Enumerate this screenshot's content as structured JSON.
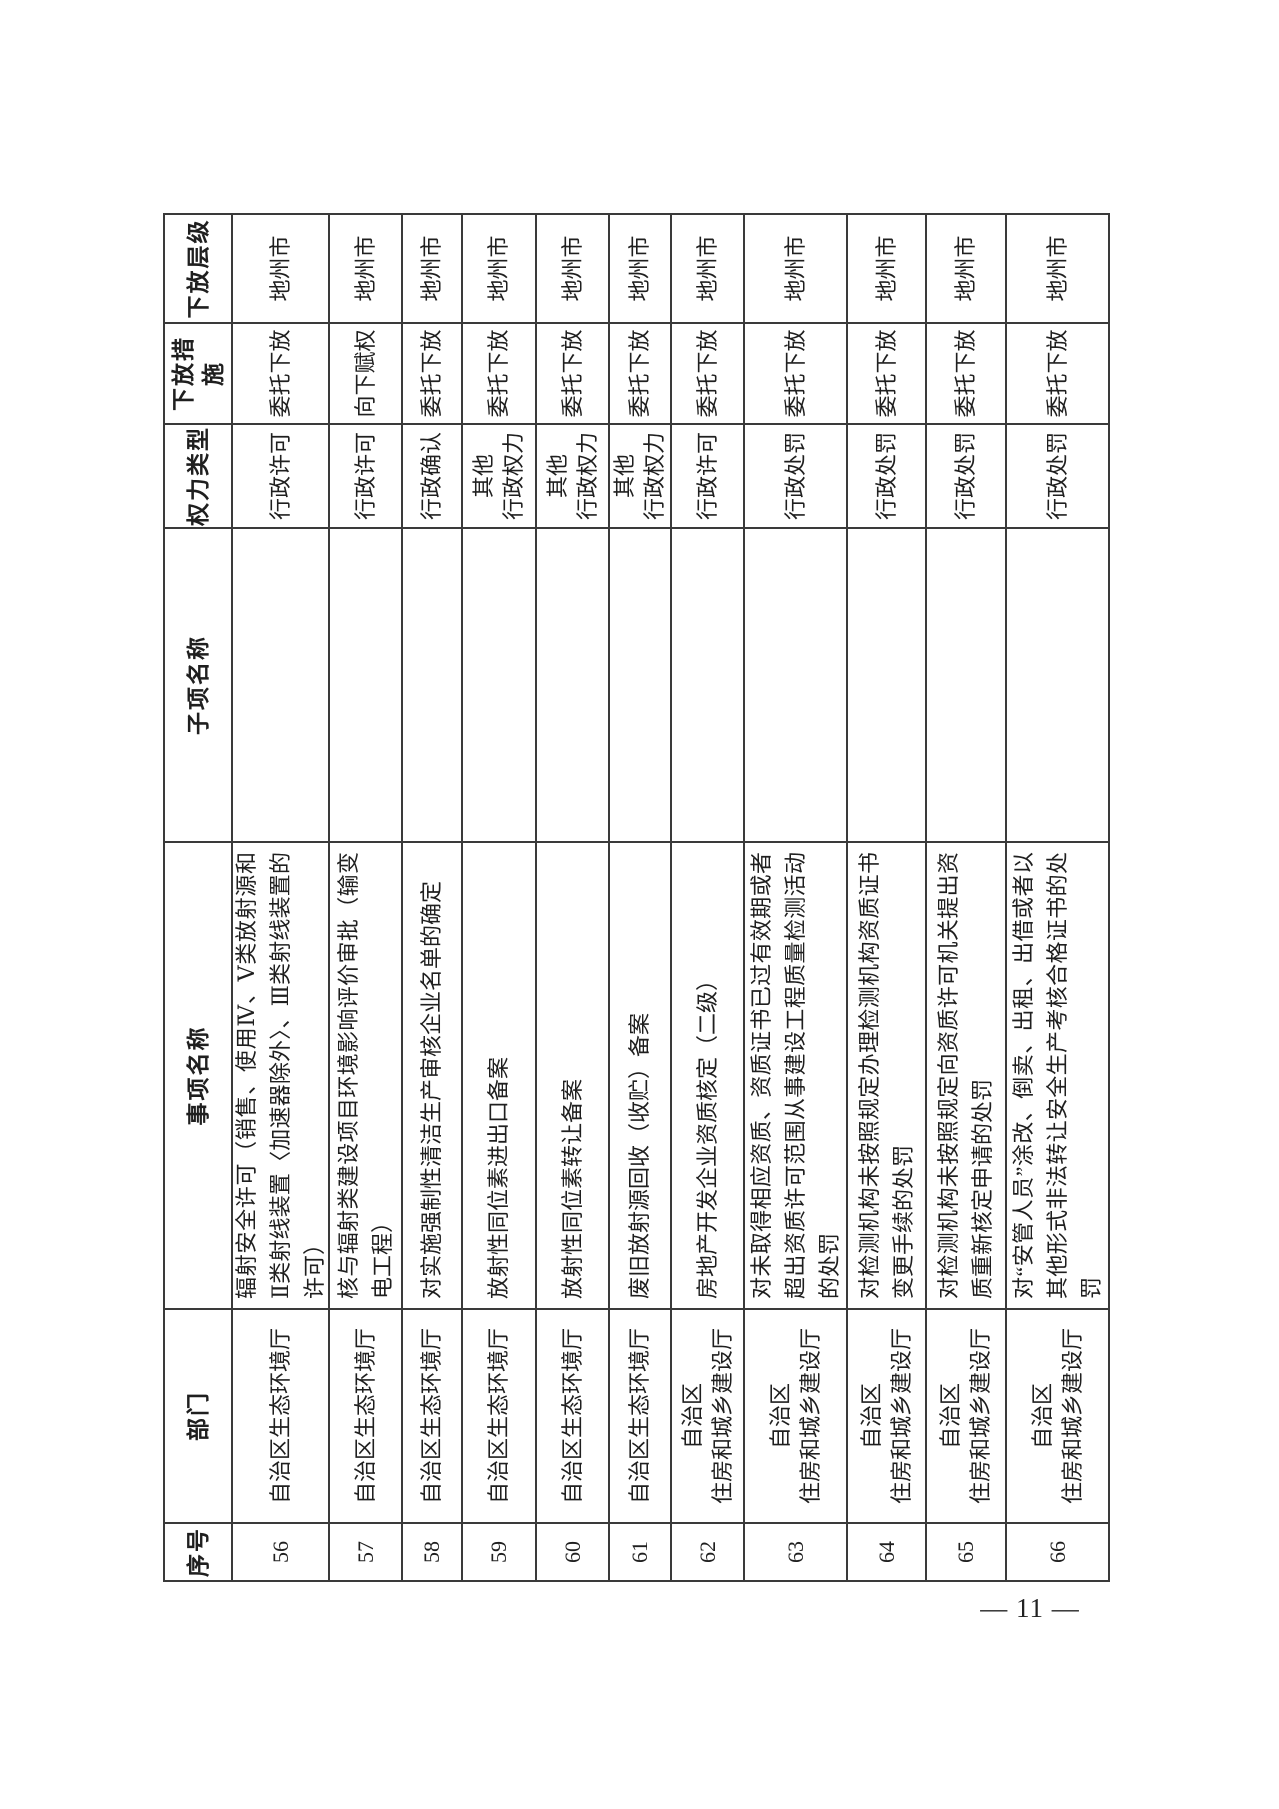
{
  "page": {
    "number_label": "— 11 —"
  },
  "table": {
    "headers": {
      "seq": "序号",
      "dept": "部门",
      "item": "事项名称",
      "subitem": "子项名称",
      "power_type": "权力类型",
      "measure": "下放措施",
      "level": "下放层级"
    },
    "rows": [
      {
        "seq": "56",
        "dept": "自治区生态环境厅",
        "item": "辐射安全许可（销售、使用Ⅳ、Ⅴ类放射源和Ⅱ类射线装置〈加速器除外〉、Ⅲ类射线装置的许可）",
        "subitem": "",
        "power_type": "行政许可",
        "measure": "委托下放",
        "level": "地州市"
      },
      {
        "seq": "57",
        "dept": "自治区生态环境厅",
        "item": "核与辐射类建设项目环境影响评价审批（输变电工程）",
        "subitem": "",
        "power_type": "行政许可",
        "measure": "向下赋权",
        "level": "地州市"
      },
      {
        "seq": "58",
        "dept": "自治区生态环境厅",
        "item": "对实施强制性清洁生产审核企业名单的确定",
        "subitem": "",
        "power_type": "行政确认",
        "measure": "委托下放",
        "level": "地州市"
      },
      {
        "seq": "59",
        "dept": "自治区生态环境厅",
        "item": "放射性同位素进出口备案",
        "subitem": "",
        "power_type": "其他\n行政权力",
        "measure": "委托下放",
        "level": "地州市"
      },
      {
        "seq": "60",
        "dept": "自治区生态环境厅",
        "item": "放射性同位素转让备案",
        "subitem": "",
        "power_type": "其他\n行政权力",
        "measure": "委托下放",
        "level": "地州市"
      },
      {
        "seq": "61",
        "dept": "自治区生态环境厅",
        "item": "废旧放射源回收（收贮）备案",
        "subitem": "",
        "power_type": "其他\n行政权力",
        "measure": "委托下放",
        "level": "地州市"
      },
      {
        "seq": "62",
        "dept": "自治区\n住房和城乡建设厅",
        "item": "房地产开发企业资质核定（二级）",
        "subitem": "",
        "power_type": "行政许可",
        "measure": "委托下放",
        "level": "地州市"
      },
      {
        "seq": "63",
        "dept": "自治区\n住房和城乡建设厅",
        "item": "对未取得相应资质、资质证书已过有效期或者超出资质许可范围从事建设工程质量检测活动的处罚",
        "subitem": "",
        "power_type": "行政处罚",
        "measure": "委托下放",
        "level": "地州市"
      },
      {
        "seq": "64",
        "dept": "自治区\n住房和城乡建设厅",
        "item": "对检测机构未按照规定办理检测机构资质证书变更手续的处罚",
        "subitem": "",
        "power_type": "行政处罚",
        "measure": "委托下放",
        "level": "地州市"
      },
      {
        "seq": "65",
        "dept": "自治区\n住房和城乡建设厅",
        "item": "对检测机构未按照规定向资质许可机关提出资质重新核定申请的处罚",
        "subitem": "",
        "power_type": "行政处罚",
        "measure": "委托下放",
        "level": "地州市"
      },
      {
        "seq": "66",
        "dept": "自治区\n住房和城乡建设厅",
        "item": "对“安管人员”涂改、倒卖、出租、出借或者以其他形式非法转让安全生产考核合格证书的处罚",
        "subitem": "",
        "power_type": "行政处罚",
        "measure": "委托下放",
        "level": "地州市"
      }
    ]
  }
}
